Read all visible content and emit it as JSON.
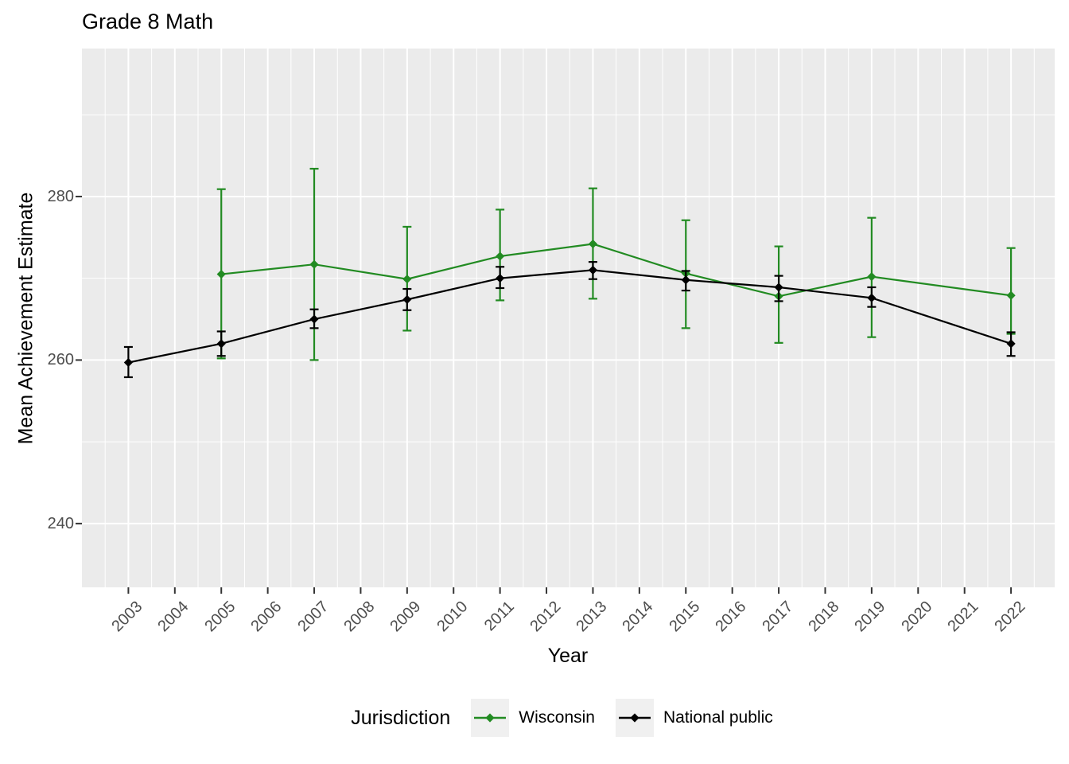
{
  "chart_data": {
    "type": "line",
    "title": "Grade 8 Math",
    "xlabel": "Year",
    "ylabel": "Mean Achievement Estimate",
    "legend": {
      "title": "Jurisdiction",
      "position": "bottom"
    },
    "axes": {
      "x_ticks": [
        2003,
        2004,
        2005,
        2006,
        2007,
        2008,
        2009,
        2010,
        2011,
        2012,
        2013,
        2014,
        2015,
        2016,
        2017,
        2018,
        2019,
        2020,
        2021,
        2022
      ],
      "x_minor_ticks": [
        2002.5,
        2003.5,
        2004.5,
        2005.5,
        2006.5,
        2007.5,
        2008.5,
        2009.5,
        2010.5,
        2011.5,
        2012.5,
        2013.5,
        2014.5,
        2015.5,
        2016.5,
        2017.5,
        2018.5,
        2019.5,
        2020.5,
        2021.5,
        2022.5
      ],
      "y_ticks": [
        240,
        260,
        280
      ],
      "y_minor_ticks": [
        250,
        270,
        290
      ],
      "xlim": [
        2002.0,
        2022.94
      ],
      "ylim": [
        232.2,
        298.1
      ],
      "x_tick_rotation": 45,
      "grid": true
    },
    "x": [
      2003,
      2005,
      2007,
      2009,
      2011,
      2013,
      2015,
      2017,
      2019,
      2022
    ],
    "series": [
      {
        "name": "Wisconsin",
        "color": "#228B22",
        "marker": "diamond",
        "values": [
          null,
          270.5,
          271.7,
          269.9,
          272.7,
          274.2,
          270.6,
          267.8,
          270.2,
          267.9
        ],
        "ci_low": [
          null,
          260.2,
          260.0,
          263.6,
          267.3,
          267.5,
          263.9,
          262.1,
          262.8,
          263.2
        ],
        "ci_high": [
          null,
          280.9,
          283.4,
          276.3,
          278.4,
          281.0,
          277.1,
          273.9,
          277.4,
          273.7
        ]
      },
      {
        "name": "National public",
        "color": "#000000",
        "marker": "diamond",
        "values": [
          259.7,
          262.0,
          265.0,
          267.4,
          270.0,
          271.0,
          269.8,
          268.9,
          267.6,
          262.0
        ],
        "ci_low": [
          257.9,
          260.5,
          263.9,
          266.1,
          268.8,
          269.9,
          268.5,
          267.2,
          266.5,
          260.5
        ],
        "ci_high": [
          261.6,
          263.5,
          266.2,
          268.7,
          271.4,
          272.0,
          270.9,
          270.3,
          268.9,
          263.4
        ]
      }
    ],
    "styles": {
      "panel_bg": "#EBEBEB",
      "grid_color": "#FFFFFF",
      "axis_tick_color": "#333333",
      "tick_label_color": "#4D4D4D",
      "legend_key_bg": "#F0F0F0"
    }
  }
}
